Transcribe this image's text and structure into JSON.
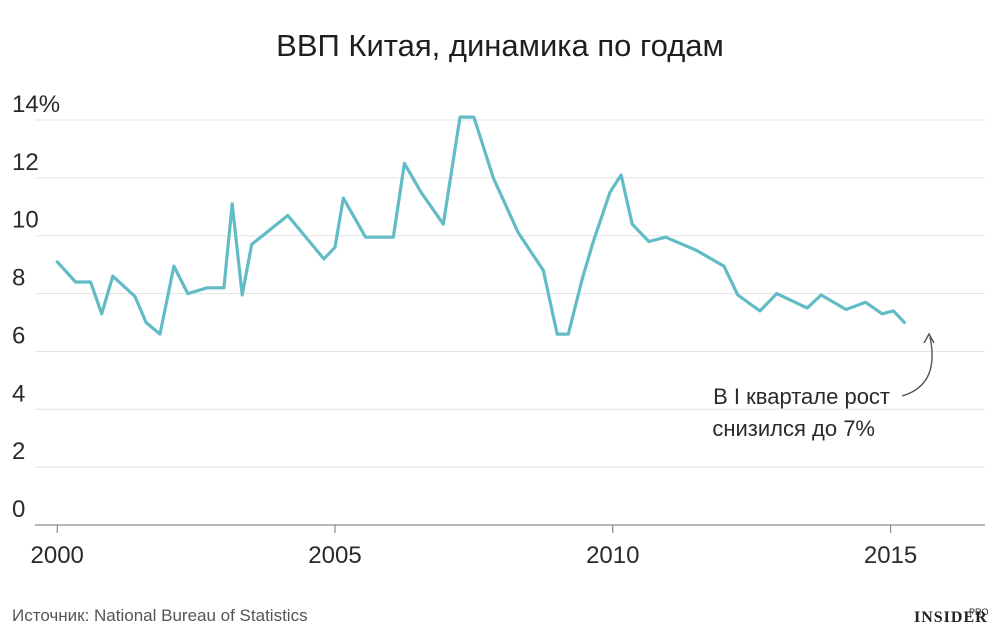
{
  "chart_data": {
    "type": "line",
    "title": "ВВП Китая, динамика по годам",
    "xlabel": "",
    "ylabel": "",
    "ylim": [
      0,
      14
    ],
    "xlim": [
      1999.6,
      2016.7
    ],
    "y_ticks": [
      "0",
      "2",
      "4",
      "6",
      "8",
      "10",
      "12",
      "14%"
    ],
    "y_tick_values": [
      0,
      2,
      4,
      6,
      8,
      10,
      12,
      14
    ],
    "x_ticks": [
      "2000",
      "2005",
      "2010",
      "2015"
    ],
    "x_tick_values": [
      2000,
      2005,
      2010,
      2015
    ],
    "grid": true,
    "line_color": "#62bcc5",
    "series": [
      {
        "name": "",
        "x": [
          2000.0,
          2000.33,
          2000.6,
          2000.8,
          2001.0,
          2001.4,
          2001.6,
          2001.85,
          2002.1,
          2002.35,
          2002.7,
          2003.0,
          2003.15,
          2003.33,
          2003.5,
          2004.15,
          2004.8,
          2005.0,
          2005.15,
          2005.55,
          2006.05,
          2006.25,
          2006.55,
          2006.95,
          2007.25,
          2007.5,
          2007.85,
          2008.3,
          2008.75,
          2009.0,
          2009.2,
          2009.45,
          2009.65,
          2009.95,
          2010.15,
          2010.35,
          2010.65,
          2010.95,
          2011.5,
          2012.0,
          2012.25,
          2012.65,
          2012.95,
          2013.5,
          2013.75,
          2014.2,
          2014.55,
          2014.85,
          2015.05,
          2015.25
        ],
        "values": [
          9.1,
          8.4,
          8.4,
          7.3,
          8.6,
          7.9,
          7.0,
          6.6,
          8.95,
          8.0,
          8.2,
          8.2,
          11.1,
          7.95,
          9.7,
          10.7,
          9.2,
          9.6,
          11.3,
          9.95,
          9.95,
          12.5,
          11.5,
          10.4,
          14.1,
          14.1,
          12.0,
          10.1,
          8.8,
          6.6,
          6.6,
          8.5,
          9.8,
          11.5,
          12.1,
          10.4,
          9.8,
          9.95,
          9.5,
          8.95,
          7.95,
          7.4,
          8.0,
          7.5,
          7.95,
          7.45,
          7.7,
          7.3,
          7.4,
          7.0
        ]
      }
    ],
    "annotation": {
      "line1": "В I квартале рост",
      "line2": "снизился до 7%"
    }
  },
  "footer": {
    "source": "Источник: National Bureau of Statistics",
    "brand": "INSIDER",
    "brand_sup": "PRO"
  }
}
